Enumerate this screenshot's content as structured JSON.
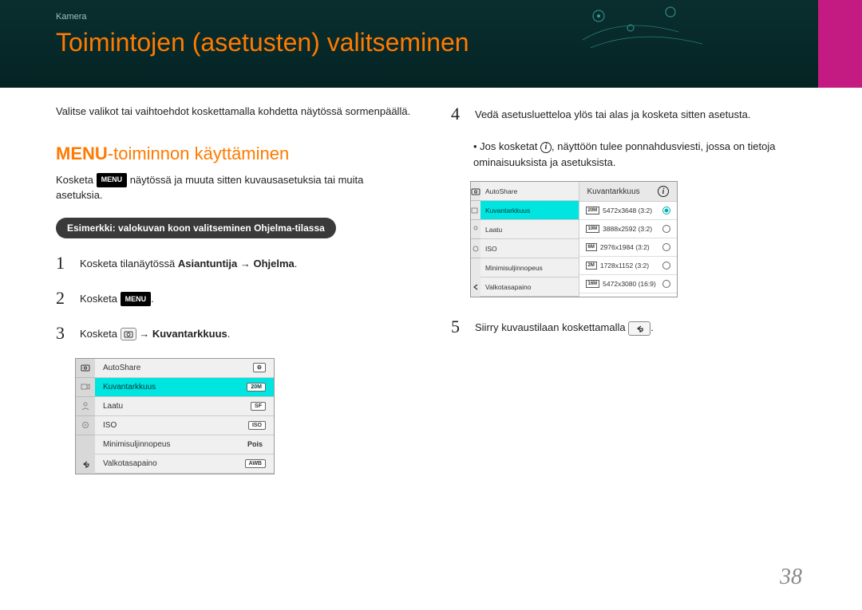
{
  "header": {
    "breadcrumb": "Kamera",
    "title": "Toimintojen (asetusten) valitseminen"
  },
  "left": {
    "intro": "Valitse valikot tai vaihtoehdot koskettamalla kohdetta näytössä sormenpäällä.",
    "section_title": "-toiminnon käyttäminen",
    "section_prefix": "MENU",
    "section_body_before": "Kosketa ",
    "section_body_chip": "MENU",
    "section_body_after": " näytössä ja muuta sitten kuvausasetuksia tai muita asetuksia.",
    "example_label": "Esimerkki: valokuvan koon valitseminen Ohjelma-tilassa",
    "steps": {
      "s1_before": "Kosketa tilanäytössä ",
      "s1_bold": "Asiantuntija → Ohjelma",
      "s1_after": ".",
      "s2_before": "Kosketa ",
      "s2_chip": "MENU",
      "s2_after": ".",
      "s3_before": "Kosketa ",
      "s3_arrow": " → ",
      "s3_bold": "Kuvantarkkuus",
      "s3_after": "."
    },
    "menu": {
      "items": [
        {
          "label": "AutoShare",
          "val_icon": "⚙"
        },
        {
          "label": "Kuvantarkkuus",
          "val_icon": "20M",
          "highlight": true
        },
        {
          "label": "Laatu",
          "val_icon": "SF"
        },
        {
          "label": "ISO",
          "val_icon": "ISO"
        },
        {
          "label": "Minimisuljinnopeus",
          "val_text": "Pois"
        },
        {
          "label": "Valkotasapaino",
          "val_icon": "AWB"
        }
      ]
    }
  },
  "right": {
    "s4_text": "Vedä asetusluetteloa ylös tai alas ja kosketa sitten asetusta.",
    "s4_bullet_before": "Jos kosketat ",
    "s4_bullet_after": ", näyttöön tulee ponnahdusviesti, jossa on tietoja ominaisuuksista ja asetuksista.",
    "submenu": {
      "left_items": [
        "AutoShare",
        "Kuvantarkkuus",
        "Laatu",
        "ISO",
        "Minimisuljinnopeus",
        "Valkotasapaino"
      ],
      "right_header": "Kuvantarkkuus",
      "right_items": [
        {
          "label": "5472x3648 (3:2)",
          "badge": "20M",
          "on": true
        },
        {
          "label": "3888x2592 (3:2)",
          "badge": "10M",
          "on": false
        },
        {
          "label": "2976x1984 (3:2)",
          "badge": "6M",
          "on": false
        },
        {
          "label": "1728x1152 (3:2)",
          "badge": "2M",
          "on": false
        },
        {
          "label": "5472x3080 (16:9)",
          "badge": "16M",
          "on": false
        }
      ]
    },
    "s5_before": "Siirry kuvaustilaan koskettamalla ",
    "s5_after": "."
  },
  "page_number": "38",
  "colors": {
    "accent": "#ff7a00",
    "teal_hl": "#00e5e0",
    "magenta": "#c41b82"
  }
}
